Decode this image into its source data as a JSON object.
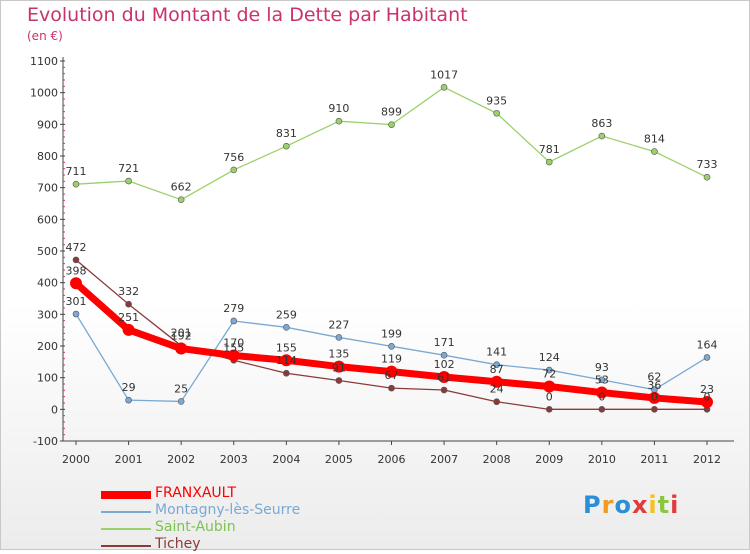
{
  "header": {
    "title": "Evolution du Montant de la Dette par Habitant",
    "subtitle": "(en €)"
  },
  "chart_data": {
    "type": "line",
    "title": "Evolution du Montant de la Dette par Habitant",
    "subtitle": "(en €)",
    "x": [
      "2000",
      "2001",
      "2002",
      "2003",
      "2004",
      "2005",
      "2006",
      "2007",
      "2008",
      "2009",
      "2010",
      "2011",
      "2012"
    ],
    "y_ticks": [
      -100,
      0,
      100,
      200,
      300,
      400,
      500,
      600,
      700,
      800,
      900,
      1000,
      1100
    ],
    "ylim": [
      -100,
      1100
    ],
    "grid": false,
    "legend_position": "bottom-left",
    "series": [
      {
        "name": "FRANXAULT",
        "color": "#ff0000",
        "values": [
          398,
          251,
          192,
          170,
          155,
          135,
          119,
          102,
          87,
          72,
          53,
          36,
          23
        ]
      },
      {
        "name": "Montagny-lès-Seurre",
        "color": "#7aa9d4",
        "values": [
          301,
          29,
          25,
          279,
          259,
          227,
          199,
          171,
          141,
          124,
          93,
          62,
          164
        ]
      },
      {
        "name": "Saint-Aubin",
        "color": "#9bd16a",
        "values": [
          711,
          721,
          662,
          756,
          831,
          910,
          899,
          1017,
          935,
          781,
          863,
          814,
          733
        ]
      },
      {
        "name": "Tichey",
        "color": "#8b3a3a",
        "values": [
          472,
          332,
          201,
          155,
          114,
          91,
          67,
          61,
          24,
          0,
          0,
          0,
          0
        ]
      }
    ]
  },
  "logo": {
    "letters": [
      "P",
      "r",
      "o",
      "x",
      "i",
      "t",
      "i"
    ],
    "colors": [
      "#2a8fd6",
      "#f29a1e",
      "#2a8fd6",
      "#e23b3b",
      "#f2c31e",
      "#8cc63f",
      "#e23b3b"
    ]
  }
}
